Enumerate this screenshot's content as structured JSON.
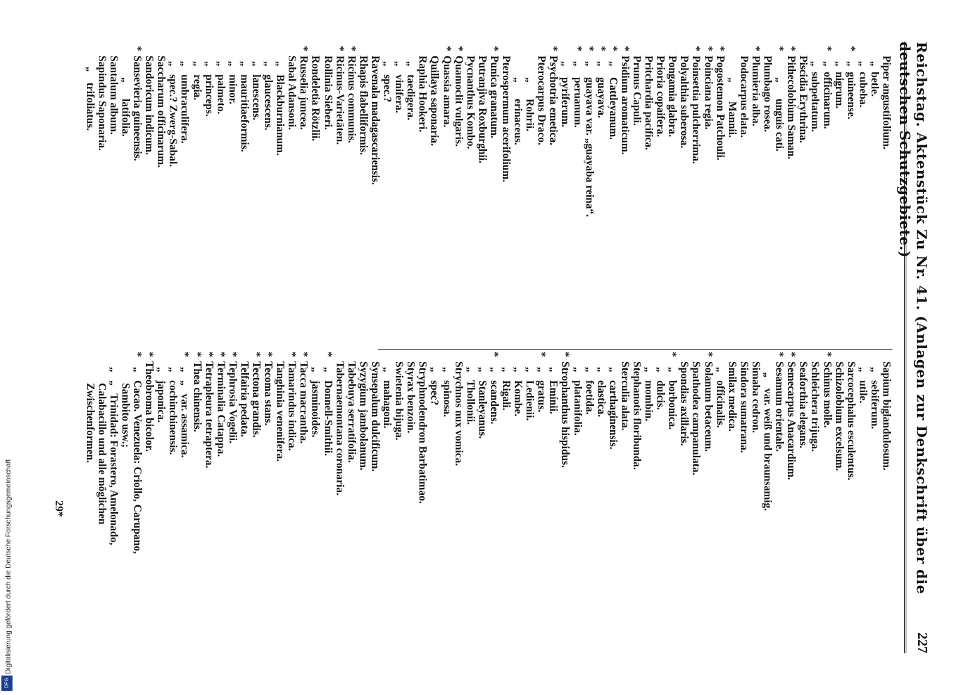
{
  "header": {
    "title": "Reichstag. Aktenstück Zu Nr. 41. (Anlagen zur Denkschrift über die deutschen Schutzgebiete.)",
    "page_number": "227"
  },
  "columns": {
    "left": [
      {
        "star": "",
        "text": "Piper angustifolium."
      },
      {
        "star": "",
        "text": "  „  betle."
      },
      {
        "star": "",
        "text": "  „  cubeba."
      },
      {
        "star": "*",
        "text": "  „  guineense."
      },
      {
        "star": "",
        "text": "  „  nigrum."
      },
      {
        "star": "*",
        "text": "  „  officinarum."
      },
      {
        "star": "",
        "text": "  „  subpeltatum."
      },
      {
        "star": "",
        "text": "Piscidia Erythrina."
      },
      {
        "star": "*",
        "text": "Pithecolobium Saman."
      },
      {
        "star": "*",
        "text": "        „      unguis cati."
      },
      {
        "star": "",
        "text": "Plumbago rosea."
      },
      {
        "star": "*",
        "text": "Plumieria alba."
      },
      {
        "star": "",
        "text": "Podocarpus elata."
      },
      {
        "star": "",
        "text": "        „       Mannii."
      },
      {
        "star": "*",
        "text": "Pogostemon Patchouli."
      },
      {
        "star": "*",
        "text": "Poinciana regia."
      },
      {
        "star": "*",
        "text": "Poinsettia pulcherrima."
      },
      {
        "star": "",
        "text": "Polyalthia suberosa."
      },
      {
        "star": "",
        "text": "Pongamia glabra."
      },
      {
        "star": "",
        "text": "Prioria copaifera."
      },
      {
        "star": "",
        "text": "Pritchardia pacifica."
      },
      {
        "star": "",
        "text": "Prunus Capuli."
      },
      {
        "star": "*",
        "text": "Psidium aromaticum."
      },
      {
        "star": "*",
        "text": "  „    Cattleyanum."
      },
      {
        "star": "*",
        "text": "  „    guayava."
      },
      {
        "star": "*",
        "text": "  „    guayava var. „guayaba reina“."
      },
      {
        "star": "*",
        "text": "  „    peruanum."
      },
      {
        "star": "",
        "text": "  „    pyriferum."
      },
      {
        "star": "*",
        "text": "Psychotria emetica."
      },
      {
        "star": "",
        "text": "Pterocarpus Draco."
      },
      {
        "star": "",
        "text": "        „      Rohrii."
      },
      {
        "star": "",
        "text": "        „      erinaceus."
      },
      {
        "star": "",
        "text": "Pterospermum acerifolium."
      },
      {
        "star": "*",
        "text": "Punica granatum."
      },
      {
        "star": "",
        "text": "Putranjiva Roxburghii."
      },
      {
        "star": "",
        "text": "Pycnanthus Kombo."
      },
      {
        "star": "*",
        "text": "Quamoclit vulgaris."
      },
      {
        "star": "*",
        "text": "Quassia amara."
      },
      {
        "star": "",
        "text": "Quillaya saponaria."
      },
      {
        "star": "",
        "text": "Raphia Hookeri."
      },
      {
        "star": "",
        "text": "  „   taedigera."
      },
      {
        "star": "",
        "text": "  „   vinifera."
      },
      {
        "star": "",
        "text": "  „   spec.?"
      },
      {
        "star": "",
        "text": "Ravenala madagascariensis."
      },
      {
        "star": "",
        "text": "Rhapis flabelliformis."
      },
      {
        "star": "*",
        "text": "Ricinus communis."
      },
      {
        "star": "*",
        "text": "Ricinus-Varietäten."
      },
      {
        "star": "",
        "text": "Rollinia Sieberi."
      },
      {
        "star": "",
        "text": "Rondeletia Rötzlii."
      },
      {
        "star": "*",
        "text": "Russelia juncea."
      },
      {
        "star": "",
        "text": "Sabal Adansoni."
      },
      {
        "star": "",
        "text": "  „   Blackburnianum."
      },
      {
        "star": "",
        "text": "  „   glaucescens."
      },
      {
        "star": "",
        "text": "  „   lanescens."
      },
      {
        "star": "",
        "text": "  „   mauritiaeformis."
      },
      {
        "star": "",
        "text": "  „   minor."
      },
      {
        "star": "",
        "text": "  „   palmeto."
      },
      {
        "star": "",
        "text": "  „   princeps."
      },
      {
        "star": "",
        "text": "  „   regia."
      },
      {
        "star": "",
        "text": "  „   umbraculifera."
      },
      {
        "star": "",
        "text": "  „   spec.? Zwerg-Sabal."
      },
      {
        "star": "",
        "text": "Saccharum officinarum."
      },
      {
        "star": "",
        "text": "Sandoricum indicum."
      },
      {
        "star": "*",
        "text": "Sansevieria guineensis."
      },
      {
        "star": "",
        "text": "        „      latifolia."
      },
      {
        "star": "",
        "text": "Santalum album."
      },
      {
        "star": "",
        "text": "Sapindus Saponaria."
      },
      {
        "star": "",
        "text": "    „    trifoliatus."
      }
    ],
    "right": [
      {
        "star": "",
        "text": "Sapium biglandulosum."
      },
      {
        "star": "",
        "text": "  „   sebiferum."
      },
      {
        "star": "",
        "text": "  „   utile."
      },
      {
        "star": "",
        "text": "Sarcocephalus esculentus."
      },
      {
        "star": "",
        "text": "Schizolobium excelsum."
      },
      {
        "star": "*",
        "text": "Schinus molle."
      },
      {
        "star": "",
        "text": "Schleichera trijuga."
      },
      {
        "star": "",
        "text": "Seaforthia elegans."
      },
      {
        "star": "*",
        "text": "Semecarpus Anacardium."
      },
      {
        "star": "*",
        "text": "Sesamum orientale."
      },
      {
        "star": "",
        "text": "    „    var. weiß und braunsamig."
      },
      {
        "star": "",
        "text": "Simaba cedron."
      },
      {
        "star": "",
        "text": "Sindora sumatrana."
      },
      {
        "star": "",
        "text": "Smilax medica."
      },
      {
        "star": "",
        "text": "  „   officinalis."
      },
      {
        "star": "*",
        "text": "Solanum betaceum."
      },
      {
        "star": "",
        "text": "Spathodea campanulata."
      },
      {
        "star": "",
        "text": "Spondias axillaris."
      },
      {
        "star": "*",
        "text": "  „   borbonica."
      },
      {
        "star": "",
        "text": "  „   dulcis."
      },
      {
        "star": "",
        "text": "  „   mombin."
      },
      {
        "star": "",
        "text": "Stephanotis floribunda."
      },
      {
        "star": "",
        "text": "Sterculia alata."
      },
      {
        "star": "",
        "text": "  „   carthaginensis."
      },
      {
        "star": "",
        "text": "  „   elastica."
      },
      {
        "star": "",
        "text": "  „   foetida."
      },
      {
        "star": "",
        "text": "  „   platanifolia."
      },
      {
        "star": "*",
        "text": "Strophanthus hispidus."
      },
      {
        "star": "",
        "text": "  „   Emínii."
      },
      {
        "star": "*",
        "text": "  „   gratus."
      },
      {
        "star": "",
        "text": "  „   Ledienii."
      },
      {
        "star": "",
        "text": "  „   Kombe."
      },
      {
        "star": "",
        "text": "  „   Rigali."
      },
      {
        "star": "*",
        "text": "  „   scandens."
      },
      {
        "star": "",
        "text": "  „   Stanleyanus."
      },
      {
        "star": "",
        "text": "  „   Thollonii."
      },
      {
        "star": "",
        "text": "Strychnos nux vomica."
      },
      {
        "star": "",
        "text": "  „   spinosa."
      },
      {
        "star": "",
        "text": "  „   spec?"
      },
      {
        "star": "",
        "text": "Stryphnodendron Barbatimao."
      },
      {
        "star": "",
        "text": "Styrax benzoin."
      },
      {
        "star": "",
        "text": "Swietenia bijuga."
      },
      {
        "star": "",
        "text": "  „   mahagoni."
      },
      {
        "star": "",
        "text": "Synsepalum dulcificum."
      },
      {
        "star": "",
        "text": "Syzygium jambolanum."
      },
      {
        "star": "",
        "text": "Tabebuya serratifolia."
      },
      {
        "star": "",
        "text": "Tabernaemontana coronaria."
      },
      {
        "star": "*",
        "text": "  „   Donnell-Smithii."
      },
      {
        "star": "",
        "text": "  „   jasminoides."
      },
      {
        "star": "*",
        "text": "Tacca macrantha."
      },
      {
        "star": "*",
        "text": "Tamarindus indica."
      },
      {
        "star": "",
        "text": "Tanghinia venenifera."
      },
      {
        "star": "*",
        "text": "Tecoma stans."
      },
      {
        "star": "*",
        "text": "Tectona grandis."
      },
      {
        "star": "",
        "text": "Telfairia pedata."
      },
      {
        "star": "*",
        "text": "Tephrosia Vogelii."
      },
      {
        "star": "*",
        "text": "Terminalia Catappa."
      },
      {
        "star": "*",
        "text": "Tetrapleura tetraptera."
      },
      {
        "star": "*",
        "text": "Thea chinensis."
      },
      {
        "star": "*",
        "text": "  „   „   var. assamica."
      },
      {
        "star": "",
        "text": "  „   cochinchinensis."
      },
      {
        "star": "",
        "text": "  „   japonica."
      },
      {
        "star": "*",
        "text": "Theobroma bicolor."
      },
      {
        "star": "*",
        "text": "  „   Cacao. Venezuela: Criollo, Carupano,"
      },
      {
        "star": "",
        "text": "        Sambito usw.;"
      },
      {
        "star": "",
        "text": "  „   „   Trinidad: Forastero, Amelonado,"
      },
      {
        "star": "",
        "text": "        Calabacillo und alle möglichen"
      },
      {
        "star": "",
        "text": "        Zwischenformen."
      }
    ]
  },
  "signature": "29*",
  "footer": {
    "dfg_text": "Digitalisierung gefördert durch die Deutsche Forschungsgemeinschaft",
    "dfg_logo": "DFG"
  }
}
